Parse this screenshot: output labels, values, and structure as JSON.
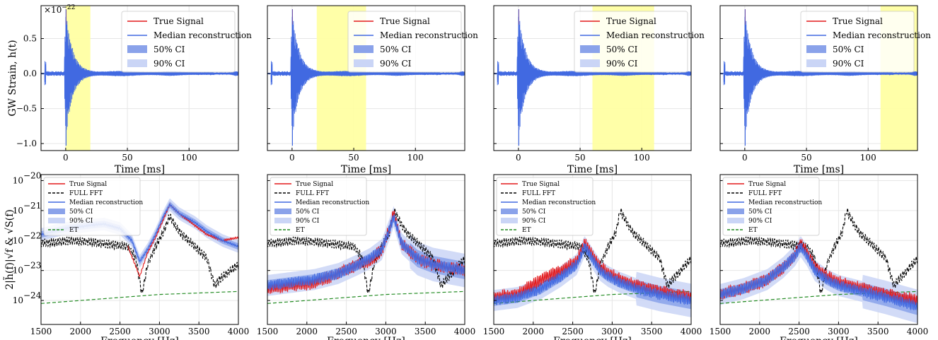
{
  "colors": {
    "true_signal": "#e41a1c",
    "median": "#4169e1",
    "ci50": "#8aa2ea",
    "ci90": "#cad5f6",
    "full_fft": "#000000",
    "et": "#228b22",
    "window": "#ffff9e"
  },
  "chart_data": [
    {
      "panel": "time-1",
      "type": "line",
      "ylabel": "GW Strain, h(t)",
      "xlabel": "Time [ms]",
      "yscale_label": "×10",
      "yscale_exp": "−22",
      "xlim": [
        -20,
        140
      ],
      "ylim": [
        -1.1,
        0.97
      ],
      "xticks": [
        0,
        50,
        100
      ],
      "yticks": [
        -1.0,
        -0.5,
        0.0,
        0.5
      ],
      "ytick_labels": [
        "−1.0",
        "−0.5",
        "0.0",
        "0.5"
      ],
      "window_ms": [
        0,
        20
      ],
      "legend": [
        "True Signal",
        "Median reconstruction",
        "50% CI",
        "90% CI"
      ]
    },
    {
      "panel": "time-2",
      "type": "line",
      "xlabel": "Time [ms]",
      "xlim": [
        -20,
        140
      ],
      "ylim": [
        -1.1,
        0.97
      ],
      "xticks": [
        0,
        50,
        100
      ],
      "window_ms": [
        20,
        60
      ],
      "legend": [
        "True Signal",
        "Median reconstruction",
        "50% CI",
        "90% CI"
      ]
    },
    {
      "panel": "time-3",
      "type": "line",
      "xlabel": "Time [ms]",
      "xlim": [
        -20,
        140
      ],
      "ylim": [
        -1.1,
        0.97
      ],
      "xticks": [
        0,
        50,
        100
      ],
      "window_ms": [
        60,
        110
      ],
      "legend": [
        "True Signal",
        "Median reconstruction",
        "50% CI",
        "90% CI"
      ]
    },
    {
      "panel": "time-4",
      "type": "line",
      "xlabel": "Time [ms]",
      "xlim": [
        -20,
        140
      ],
      "ylim": [
        -1.1,
        0.97
      ],
      "xticks": [
        0,
        50,
        100
      ],
      "window_ms": [
        110,
        140
      ],
      "legend": [
        "True Signal",
        "Median reconstruction",
        "50% CI",
        "90% CI"
      ]
    },
    {
      "panel": "freq-1",
      "type": "line",
      "yscale": "log",
      "ylabel": "2|h̃(f)|√f & √S(f)",
      "xlabel": "Frequency [Hz]",
      "xlim": [
        1500,
        4000
      ],
      "ylim_log10": [
        -24.8,
        -19.8
      ],
      "xticks": [
        1500,
        2000,
        2500,
        3000,
        3500,
        4000
      ],
      "ytick_exponents": [
        -24,
        -23,
        -22,
        -21,
        -20
      ],
      "legend": [
        "True Signal",
        "FULL FFT",
        "Median reconstruction",
        "50% CI",
        "90% CI",
        "ET"
      ],
      "series": [
        {
          "name": "FULL FFT",
          "x": [
            1500,
            1900,
            2300,
            2600,
            2700,
            2780,
            2850,
            2950,
            3050,
            3130,
            3250,
            3450,
            3600,
            3700,
            3800,
            4000
          ],
          "log10_y": [
            -22.1,
            -22.0,
            -22.1,
            -22.2,
            -22.6,
            -23.8,
            -22.8,
            -22.2,
            -21.7,
            -21.2,
            -21.7,
            -22.2,
            -22.6,
            -23.5,
            -23.2,
            -22.8
          ]
        },
        {
          "name": "Median reconstruction",
          "x": [
            1500,
            1800,
            2100,
            2300,
            2500,
            2650,
            2750,
            2850,
            2950,
            3050,
            3130,
            3250,
            3450,
            3600,
            3800,
            4000
          ],
          "log10_y": [
            -21.8,
            -21.6,
            -21.5,
            -21.45,
            -21.6,
            -22.0,
            -22.7,
            -22.3,
            -21.8,
            -21.2,
            -20.8,
            -21.1,
            -21.4,
            -21.7,
            -22.0,
            -22.2
          ]
        },
        {
          "name": "True Signal",
          "x": [
            2600,
            2750,
            2850,
            2950,
            3050,
            3130,
            3250,
            3450,
            3600,
            3800,
            4000
          ],
          "log10_y": [
            -22.2,
            -23.2,
            -22.4,
            -21.9,
            -21.3,
            -20.8,
            -21.1,
            -21.5,
            -21.8,
            -22.0,
            -21.9
          ]
        },
        {
          "name": "ET",
          "x": [
            1500,
            2000,
            2500,
            3000,
            3500,
            4000
          ],
          "log10_y": [
            -24.1,
            -24.0,
            -23.9,
            -23.8,
            -23.75,
            -23.7
          ]
        }
      ]
    },
    {
      "panel": "freq-2",
      "type": "line",
      "yscale": "log",
      "xlabel": "Frequency [Hz]",
      "xlim": [
        1500,
        4000
      ],
      "ylim_log10": [
        -24.8,
        -19.8
      ],
      "xticks": [
        1500,
        2000,
        2500,
        3000,
        3500,
        4000
      ],
      "legend": [
        "True Signal",
        "FULL FFT",
        "Median reconstruction",
        "50% CI",
        "90% CI",
        "ET"
      ],
      "series": [
        {
          "name": "FULL FFT",
          "x": [
            1500,
            1900,
            2300,
            2600,
            2700,
            2780,
            2850,
            2950,
            3050,
            3100,
            3250,
            3450,
            3600,
            3700,
            3800,
            4000
          ],
          "log10_y": [
            -22.1,
            -22.0,
            -22.1,
            -22.2,
            -22.6,
            -23.8,
            -22.8,
            -22.2,
            -21.7,
            -21.0,
            -21.7,
            -22.2,
            -22.6,
            -23.5,
            -23.2,
            -22.6
          ]
        },
        {
          "name": "Median reconstruction",
          "x": [
            1500,
            1800,
            2100,
            2400,
            2650,
            2800,
            2950,
            3050,
            3100,
            3200,
            3400,
            3600,
            3800,
            4000
          ],
          "log10_y": [
            -23.5,
            -23.4,
            -23.3,
            -23.1,
            -22.8,
            -22.6,
            -22.3,
            -21.6,
            -21.2,
            -22.1,
            -22.6,
            -22.8,
            -22.9,
            -23.0
          ]
        },
        {
          "name": "True Signal",
          "x": [
            1500,
            1800,
            2100,
            2400,
            2650,
            2800,
            2950,
            3050,
            3100,
            3200,
            3400,
            3600,
            3800,
            4000
          ],
          "log10_y": [
            -23.6,
            -23.5,
            -23.4,
            -23.1,
            -22.8,
            -22.7,
            -22.3,
            -21.6,
            -21.1,
            -22.1,
            -22.6,
            -22.8,
            -22.9,
            -23.0
          ]
        },
        {
          "name": "ET",
          "x": [
            1500,
            2000,
            2500,
            3000,
            3500,
            4000
          ],
          "log10_y": [
            -24.1,
            -24.0,
            -23.9,
            -23.8,
            -23.75,
            -23.7
          ]
        }
      ]
    },
    {
      "panel": "freq-3",
      "type": "line",
      "yscale": "log",
      "xlabel": "Frequency [Hz]",
      "xlim": [
        1500,
        4000
      ],
      "ylim_log10": [
        -24.8,
        -19.8
      ],
      "xticks": [
        1500,
        2000,
        2500,
        3000,
        3500,
        4000
      ],
      "legend": [
        "True Signal",
        "FULL FFT",
        "Median reconstruction",
        "50% CI",
        "90% CI",
        "ET"
      ],
      "series": [
        {
          "name": "FULL FFT",
          "x": [
            1500,
            1900,
            2300,
            2600,
            2700,
            2780,
            2850,
            2950,
            3050,
            3100,
            3250,
            3450,
            3600,
            3700,
            3800,
            4000
          ],
          "log10_y": [
            -22.1,
            -22.0,
            -22.1,
            -22.2,
            -22.6,
            -23.8,
            -22.8,
            -22.2,
            -21.7,
            -21.0,
            -21.7,
            -22.2,
            -22.6,
            -23.5,
            -23.2,
            -22.6
          ]
        },
        {
          "name": "Median reconstruction",
          "x": [
            1500,
            1800,
            2100,
            2350,
            2550,
            2650,
            2750,
            2850,
            2950,
            3100,
            3300,
            3600,
            4000
          ],
          "log10_y": [
            -24.0,
            -23.9,
            -23.6,
            -23.2,
            -22.8,
            -22.2,
            -22.6,
            -23.0,
            -23.2,
            -23.4,
            -23.6,
            -23.8,
            -24.0
          ]
        },
        {
          "name": "True Signal",
          "x": [
            1500,
            1800,
            2100,
            2350,
            2550,
            2650,
            2750,
            2850,
            2950,
            3100,
            3300,
            3600,
            4000
          ],
          "log10_y": [
            -23.9,
            -23.8,
            -23.3,
            -23.0,
            -22.7,
            -22.1,
            -22.5,
            -22.9,
            -23.1,
            -23.3,
            -23.5,
            -23.7,
            -23.9
          ]
        },
        {
          "name": "ET",
          "x": [
            1500,
            2000,
            2500,
            3000,
            3500,
            4000
          ],
          "log10_y": [
            -24.1,
            -24.0,
            -23.9,
            -23.8,
            -23.75,
            -23.7
          ]
        }
      ]
    },
    {
      "panel": "freq-4",
      "type": "line",
      "yscale": "log",
      "xlabel": "Frequency [Hz]",
      "xlim": [
        1500,
        4000
      ],
      "ylim_log10": [
        -24.8,
        -19.8
      ],
      "xticks": [
        1500,
        2000,
        2500,
        3000,
        3500,
        4000
      ],
      "legend": [
        "True Signal",
        "FULL FFT",
        "Median reconstruction",
        "50% CI",
        "90% CI",
        "ET"
      ],
      "series": [
        {
          "name": "FULL FFT",
          "x": [
            1500,
            1900,
            2300,
            2600,
            2700,
            2780,
            2850,
            2950,
            3050,
            3100,
            3250,
            3450,
            3600,
            3700,
            3800,
            4000
          ],
          "log10_y": [
            -22.1,
            -22.0,
            -22.1,
            -22.2,
            -22.6,
            -23.8,
            -22.8,
            -22.2,
            -21.7,
            -21.0,
            -21.7,
            -22.2,
            -22.6,
            -23.5,
            -23.2,
            -22.6
          ]
        },
        {
          "name": "Median reconstruction",
          "x": [
            1500,
            1800,
            2100,
            2300,
            2450,
            2520,
            2600,
            2700,
            2850,
            3000,
            3300,
            3600,
            4000
          ],
          "log10_y": [
            -23.8,
            -23.6,
            -23.3,
            -22.9,
            -22.5,
            -22.2,
            -22.5,
            -23.0,
            -23.3,
            -23.5,
            -23.7,
            -23.9,
            -24.2
          ]
        },
        {
          "name": "True Signal",
          "x": [
            1500,
            1800,
            2100,
            2300,
            2450,
            2520,
            2600,
            2700,
            2850,
            3000,
            3300,
            3600,
            4000
          ],
          "log10_y": [
            -23.8,
            -23.6,
            -23.3,
            -22.9,
            -22.5,
            -22.1,
            -22.4,
            -22.9,
            -23.2,
            -23.4,
            -23.6,
            -23.8,
            -24.0
          ]
        },
        {
          "name": "ET",
          "x": [
            1500,
            2000,
            2500,
            3000,
            3500,
            4000
          ],
          "log10_y": [
            -24.1,
            -24.0,
            -23.9,
            -23.8,
            -23.75,
            -23.7
          ]
        }
      ]
    }
  ]
}
